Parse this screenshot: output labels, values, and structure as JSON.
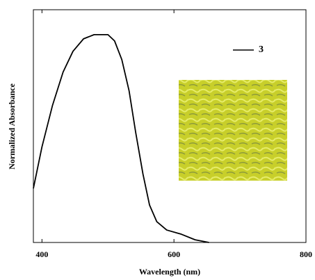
{
  "chart_data": {
    "type": "line",
    "x_label": "Wavelength (nm)",
    "y_label": "Normalized Absorbance",
    "xlim": [
      387,
      800
    ],
    "ylim": [
      0,
      1.12
    ],
    "xticks": [
      400,
      600,
      800
    ],
    "series": [
      {
        "name": "3",
        "color": "#000000",
        "x": [
          387,
          400,
          416,
          432,
          447,
          463,
          479,
          500,
          510,
          521,
          532,
          542,
          553,
          563,
          574,
          589,
          611,
          632,
          653
        ],
        "values": [
          0.26,
          0.46,
          0.66,
          0.82,
          0.92,
          0.98,
          1.0,
          1.0,
          0.97,
          0.88,
          0.73,
          0.53,
          0.33,
          0.18,
          0.1,
          0.06,
          0.04,
          0.013,
          0
        ]
      }
    ]
  }
}
